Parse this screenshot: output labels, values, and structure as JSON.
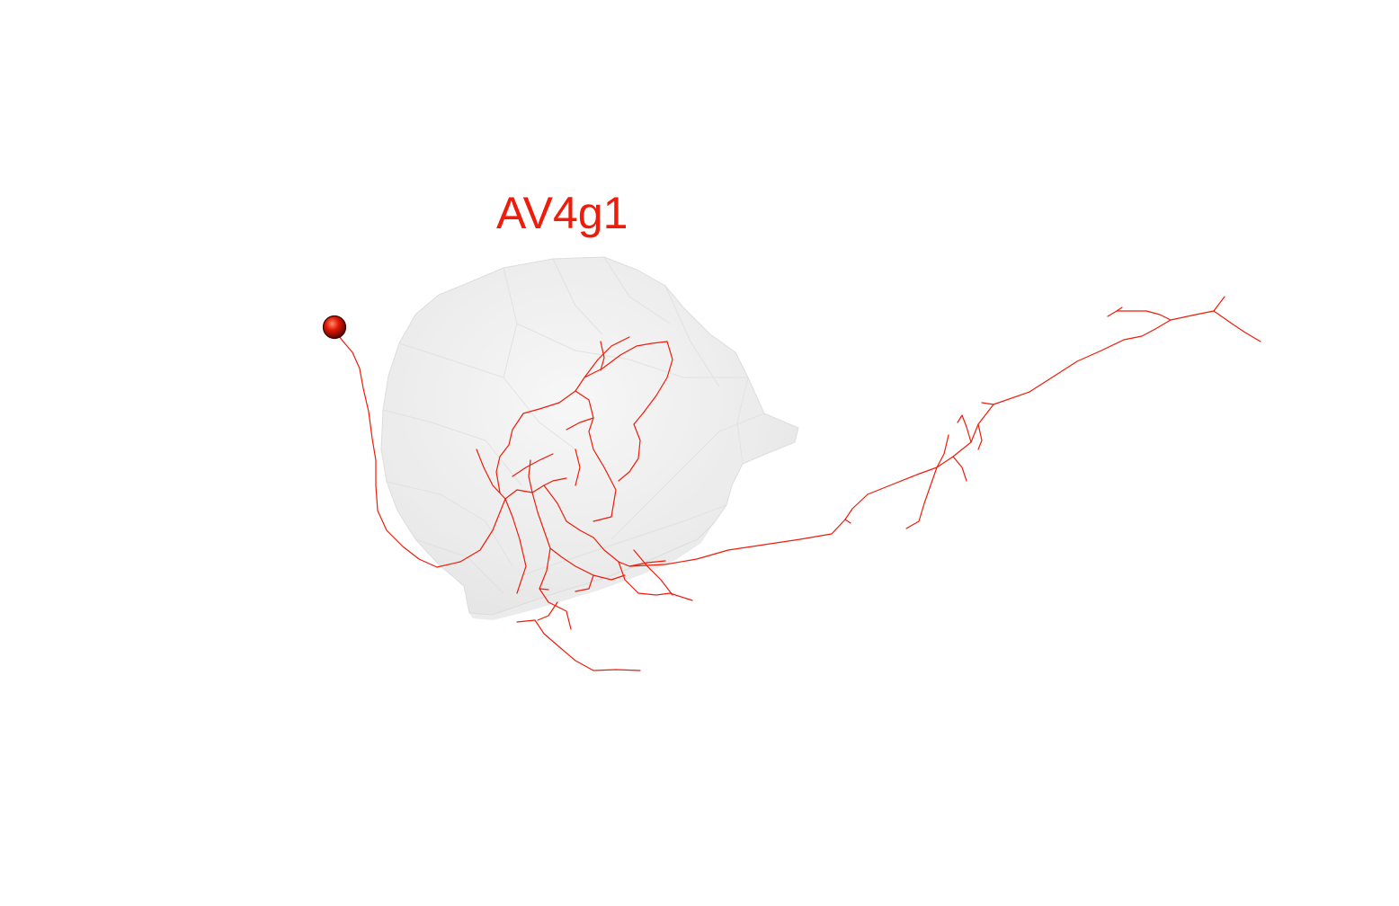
{
  "neuron": {
    "label": "AV4g1",
    "color": "#ee1c0a"
  },
  "colors": {
    "background": "#ffffff",
    "mesh_fill": "#e8e8e8",
    "mesh_edge": "#d4d4d4",
    "soma_dark": "#7a0a00",
    "soma_light": "#ff6a50"
  }
}
